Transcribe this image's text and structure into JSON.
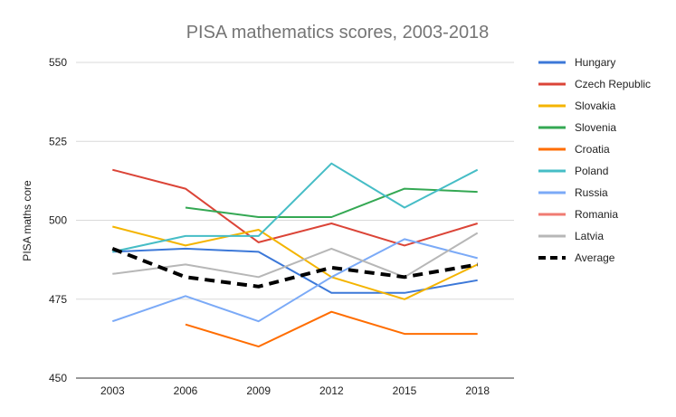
{
  "chart_data": {
    "type": "line",
    "title": "PISA mathematics scores, 2003-2018",
    "xlabel": "",
    "ylabel": "PISA maths core",
    "x": [
      "2003",
      "2006",
      "2009",
      "2012",
      "2015",
      "2018"
    ],
    "ylim": [
      450,
      550
    ],
    "yticks": [
      450,
      475,
      500,
      525,
      550
    ],
    "grid": true,
    "legend_position": "right",
    "series": [
      {
        "name": "Hungary",
        "color": "#3c78d8",
        "dashed": false,
        "values": [
          490,
          491,
          490,
          477,
          477,
          481
        ]
      },
      {
        "name": "Czech Republic",
        "color": "#db4437",
        "dashed": false,
        "values": [
          516,
          510,
          493,
          499,
          492,
          499
        ]
      },
      {
        "name": "Slovakia",
        "color": "#f4b400",
        "dashed": false,
        "values": [
          498,
          492,
          497,
          482,
          475,
          486
        ]
      },
      {
        "name": "Slovenia",
        "color": "#34a853",
        "dashed": false,
        "values": [
          null,
          504,
          501,
          501,
          510,
          509
        ]
      },
      {
        "name": "Croatia",
        "color": "#ff6d00",
        "dashed": false,
        "values": [
          null,
          467,
          460,
          471,
          464,
          464
        ]
      },
      {
        "name": "Poland",
        "color": "#46bdc6",
        "dashed": false,
        "values": [
          490,
          495,
          495,
          518,
          504,
          516
        ]
      },
      {
        "name": "Russia",
        "color": "#7baaf7",
        "dashed": false,
        "values": [
          468,
          476,
          468,
          482,
          494,
          488
        ]
      },
      {
        "name": "Romania",
        "color": "#f07b72",
        "dashed": false,
        "values": [
          null,
          null,
          null,
          null,
          null,
          null
        ]
      },
      {
        "name": "Latvia",
        "color": "#b7b7b7",
        "dashed": false,
        "values": [
          483,
          486,
          482,
          491,
          482,
          496
        ]
      },
      {
        "name": "Average",
        "color": "#000000",
        "dashed": true,
        "values": [
          491,
          482,
          479,
          485,
          482,
          486
        ]
      }
    ]
  }
}
